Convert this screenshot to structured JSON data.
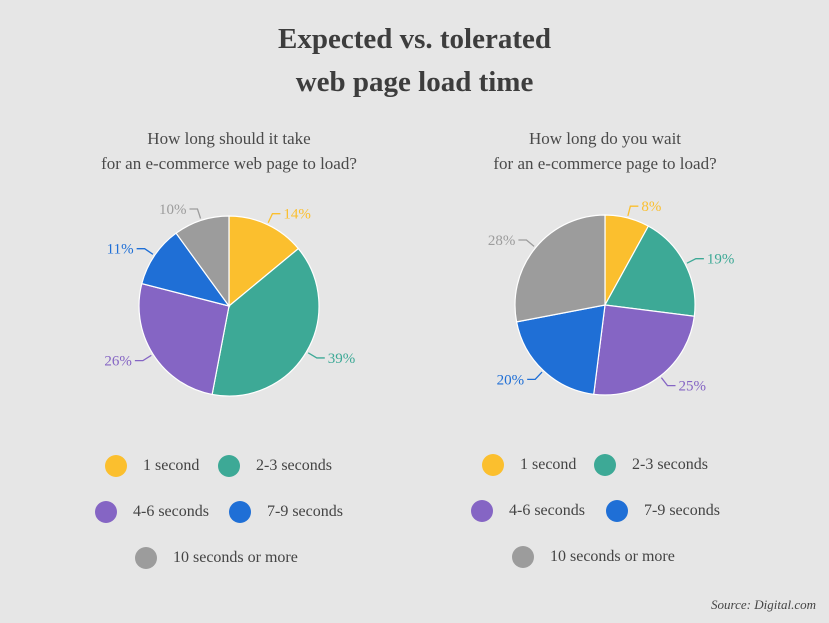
{
  "title": {
    "line1": "Expected vs. tolerated",
    "line2": "web page load time"
  },
  "colors": {
    "1 second": "#fbbf2e",
    "2-3 seconds": "#3da996",
    "4-6 seconds": "#8565c4",
    "7-9 seconds": "#1f6fd6",
    "10 seconds or more": "#9c9c9c"
  },
  "chart_data": [
    {
      "type": "pie",
      "title_line1": "How long should it take",
      "title_line2": "for an e-commerce web page to load?",
      "categories": [
        "1 second",
        "2-3 seconds",
        "4-6 seconds",
        "7-9 seconds",
        "10 seconds or more"
      ],
      "values": [
        14,
        39,
        26,
        11,
        10
      ],
      "labels": [
        "14%",
        "39%",
        "26%",
        "11%",
        "10%"
      ],
      "legend": [
        "1 second",
        "2-3 seconds",
        "4-6 seconds",
        "7-9 seconds",
        "10 seconds or more"
      ]
    },
    {
      "type": "pie",
      "title_line1": "How long do you wait",
      "title_line2": "for an e-commerce page to load?",
      "categories": [
        "1 second",
        "2-3 seconds",
        "4-6 seconds",
        "7-9 seconds",
        "10 seconds or more"
      ],
      "values": [
        8,
        19,
        25,
        20,
        28
      ],
      "labels": [
        "8%",
        "19%",
        "25%",
        "20%",
        "28%"
      ],
      "legend": [
        "1 second",
        "2-3 seconds",
        "4-6 seconds",
        "7-9 seconds",
        "10 seconds or more"
      ]
    }
  ],
  "source": "Source: Digital.com"
}
